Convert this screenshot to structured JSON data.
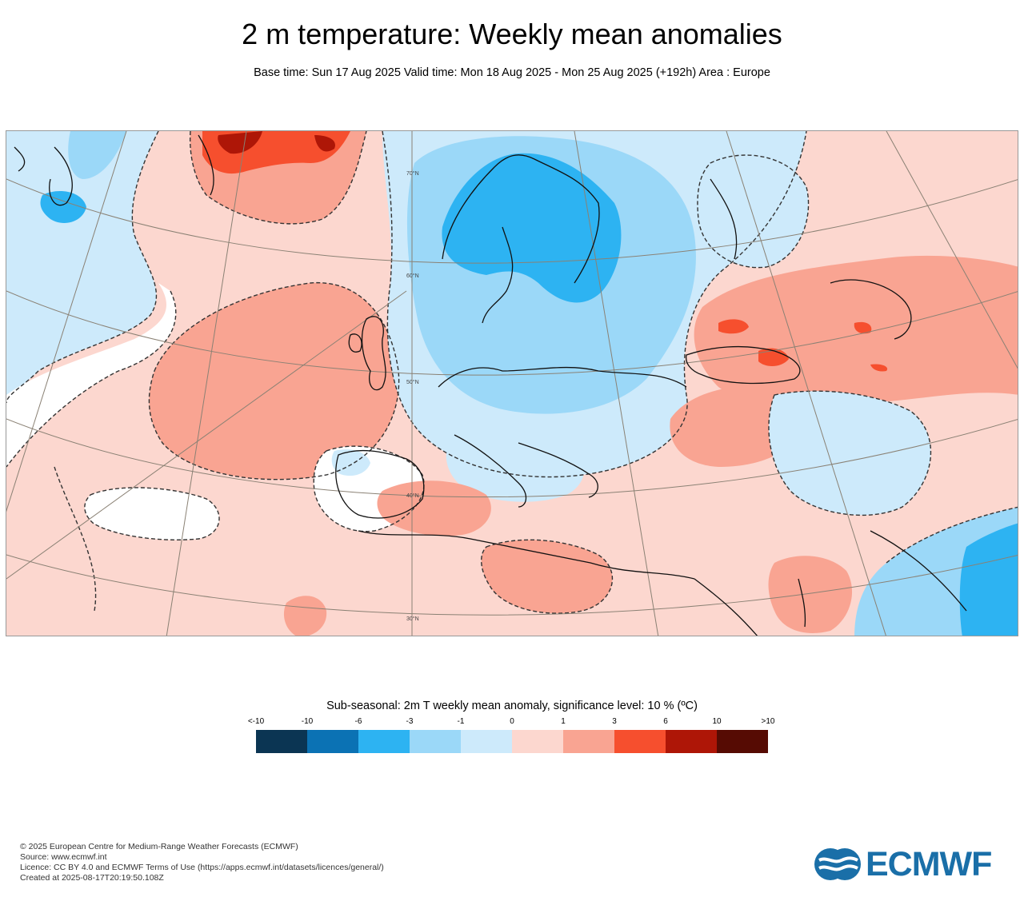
{
  "header": {
    "title": "2 m temperature: Weekly mean anomalies",
    "subtitle": "Base time: Sun 17 Aug 2025 Valid time: Mon 18 Aug 2025 - Mon 25 Aug 2025 (+192h) Area : Europe"
  },
  "map": {
    "lat_labels": [
      "70°N",
      "60°N",
      "50°N",
      "40°N",
      "30°N"
    ],
    "colors": {
      "land_outline": "#111111",
      "graticule": "#8a8174",
      "significance_contour": "#333333"
    }
  },
  "legend": {
    "title": "Sub-seasonal: 2m T weekly mean anomaly, significance level: 10 % (ºC)",
    "ticks": [
      "<-10",
      "-10",
      "-6",
      "-3",
      "-1",
      "0",
      "1",
      "3",
      "6",
      "10",
      ">10"
    ],
    "colors": [
      "#0b3553",
      "#0b72b4",
      "#2db3f2",
      "#9bd8f8",
      "#cdeafb",
      "#fcd7cf",
      "#f9a492",
      "#f64f2e",
      "#ae1607",
      "#560b03"
    ]
  },
  "footer": {
    "copyright": "© 2025 European Centre for Medium-Range Weather Forecasts (ECMWF)",
    "source": "Source: www.ecmwf.int",
    "licence": "Licence: CC BY 4.0 and ECMWF Terms of Use (https://apps.ecmwf.int/datasets/licences/general/)",
    "created": "Created at 2025-08-17T20:19:50.108Z"
  },
  "logo": {
    "text": "ECMWF",
    "color": "#1a6fa8"
  }
}
